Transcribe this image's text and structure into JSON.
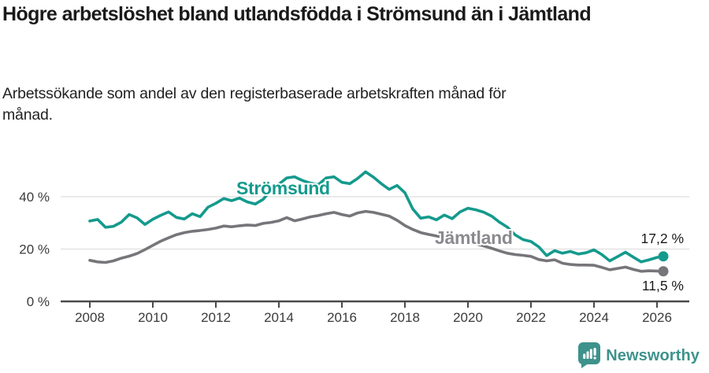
{
  "header": {
    "title": "Högre arbetslöshet bland utlandsfödda i Strömsund än i Jämtland",
    "subtitle": "Arbetssökande som andel av den registerbaserade arbetskraften månad för månad."
  },
  "footer": {
    "brand": "Newsworthy"
  },
  "colors": {
    "stromsund_line": "#149a8d",
    "jamtland_line": "#77757a",
    "jamtland_label": "#8b8a8f",
    "grid": "#e2e2e2",
    "axis": "#4a4a4a",
    "tick_text": "#3b3b3b",
    "end_label_text": "#1a1a1a",
    "brand": "#3e928c",
    "title_text": "#1a1a1a"
  },
  "chart_data": {
    "type": "line",
    "title": "Högre arbetslöshet bland utlandsfödda i Strömsund än i Jämtland",
    "subtitle": "Arbetssökande som andel av den registerbaserade arbetskraften månad för månad.",
    "xlabel": "",
    "ylabel": "",
    "xlim": [
      2008,
      2026.2
    ],
    "ylim": [
      0,
      55
    ],
    "grid": "horizontal",
    "legend_position": "inline-labels",
    "y_ticks": [
      {
        "label": "0 %",
        "value": 0
      },
      {
        "label": "20 %",
        "value": 20
      },
      {
        "label": "40 %",
        "value": 40
      }
    ],
    "x_ticks": [
      2008,
      2010,
      2012,
      2014,
      2016,
      2018,
      2020,
      2022,
      2024,
      2026
    ],
    "x": [
      2008,
      2008.25,
      2008.5,
      2008.75,
      2009,
      2009.25,
      2009.5,
      2009.75,
      2010,
      2010.25,
      2010.5,
      2010.75,
      2011,
      2011.25,
      2011.5,
      2011.75,
      2012,
      2012.25,
      2012.5,
      2012.75,
      2013,
      2013.25,
      2013.5,
      2013.75,
      2014,
      2014.25,
      2014.5,
      2014.75,
      2015,
      2015.25,
      2015.5,
      2015.75,
      2016,
      2016.25,
      2016.5,
      2016.75,
      2017,
      2017.25,
      2017.5,
      2017.75,
      2018,
      2018.25,
      2018.5,
      2018.75,
      2019,
      2019.25,
      2019.5,
      2019.75,
      2020,
      2020.25,
      2020.5,
      2020.75,
      2021,
      2021.25,
      2021.5,
      2021.75,
      2022,
      2022.25,
      2022.5,
      2022.75,
      2023,
      2023.25,
      2023.5,
      2023.75,
      2024,
      2024.25,
      2024.5,
      2024.75,
      2025,
      2025.25,
      2025.5,
      2025.75,
      2026,
      2026.2
    ],
    "series": [
      {
        "name": "Strömsund",
        "color_key": "stromsund_line",
        "label_color_key": "stromsund_line",
        "end_label": "17,2 %",
        "end_value": 17.2,
        "values": [
          30.7,
          31.3,
          28.3,
          28.7,
          30.3,
          33.2,
          31.9,
          29.4,
          31.4,
          32.9,
          34.2,
          32.1,
          31.5,
          33.5,
          32.4,
          36.0,
          37.5,
          39.3,
          38.5,
          39.5,
          38.0,
          37.2,
          39.0,
          42.5,
          44.8,
          47.2,
          47.6,
          46.2,
          45.2,
          44.6,
          47.2,
          47.6,
          45.5,
          45.0,
          47.0,
          49.5,
          47.5,
          45.0,
          42.8,
          44.3,
          41.5,
          35.3,
          31.8,
          32.3,
          31.2,
          33.0,
          31.6,
          34.2,
          35.6,
          35.0,
          34.1,
          32.6,
          30.3,
          28.4,
          25.4,
          23.6,
          22.9,
          20.8,
          17.5,
          19.4,
          18.4,
          19.1,
          18.1,
          18.6,
          19.7,
          17.9,
          15.5,
          17.1,
          18.8,
          16.9,
          15.1,
          15.9,
          16.8,
          17.2
        ]
      },
      {
        "name": "Jämtland",
        "color_key": "jamtland_line",
        "label_color_key": "jamtland_label",
        "end_label": "11,5 %",
        "end_value": 11.5,
        "values": [
          15.7,
          15.1,
          14.9,
          15.5,
          16.5,
          17.3,
          18.3,
          19.8,
          21.4,
          23.0,
          24.3,
          25.5,
          26.3,
          26.8,
          27.1,
          27.5,
          28.0,
          28.8,
          28.5,
          28.9,
          29.2,
          29.0,
          29.8,
          30.2,
          30.8,
          32.0,
          30.8,
          31.5,
          32.3,
          32.8,
          33.5,
          34.0,
          33.2,
          32.6,
          33.8,
          34.4,
          34.0,
          33.3,
          32.6,
          31.0,
          29.0,
          27.5,
          26.3,
          25.6,
          25.0,
          24.4,
          23.8,
          23.2,
          22.6,
          22.0,
          21.2,
          20.3,
          19.3,
          18.4,
          17.9,
          17.6,
          17.2,
          16.0,
          15.5,
          15.9,
          14.6,
          14.1,
          13.9,
          13.9,
          13.8,
          13.0,
          12.1,
          12.6,
          13.1,
          12.2,
          11.5,
          11.7,
          11.6,
          11.5
        ]
      }
    ]
  }
}
